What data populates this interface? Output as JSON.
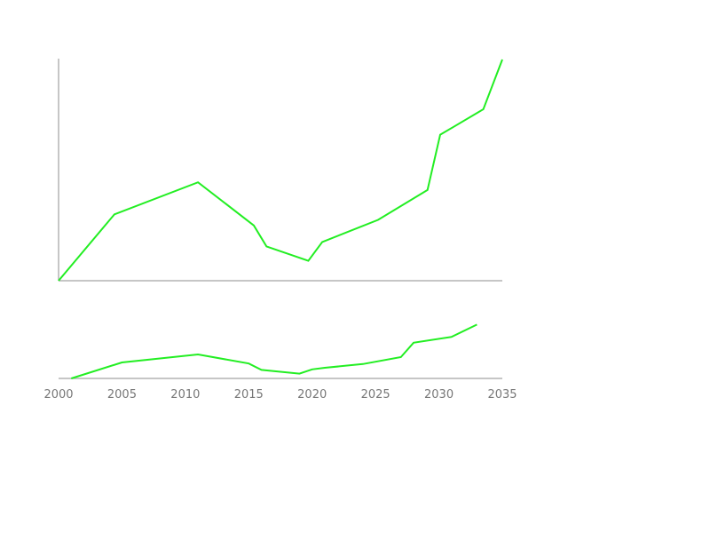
{
  "chart_data": [
    {
      "type": "line",
      "title": "",
      "xlabel": "",
      "ylabel": "",
      "xlim": [
        2000,
        2035
      ],
      "ylim": [
        0,
        100
      ],
      "grid": false,
      "legend": "none",
      "x_ticks_visible": false,
      "y_ticks_visible": false,
      "series": [
        {
          "color": "#22ee22",
          "x": [
            2000,
            2004.4,
            2011,
            2015.4,
            2016.4,
            2019.7,
            2020.8,
            2025.2,
            2029.1,
            2030.1,
            2033.5,
            2035
          ],
          "y": [
            0,
            30,
            44.5,
            25,
            15.5,
            9,
            17.5,
            27.5,
            41,
            66,
            77.5,
            100
          ]
        }
      ]
    },
    {
      "type": "line",
      "title": "",
      "xlabel": "",
      "ylabel": "",
      "xlim": [
        2000,
        2035
      ],
      "ylim": [
        0,
        100
      ],
      "grid": false,
      "legend": "none",
      "x_ticks": [
        "2000",
        "2005",
        "2010",
        "2015",
        "2020",
        "2025",
        "2030",
        "2035"
      ],
      "series": [
        {
          "color": "#22ee22",
          "x": [
            2001,
            2005,
            2011,
            2015,
            2016,
            2019,
            2020,
            2021,
            2024,
            2027,
            2028,
            2031,
            2033
          ],
          "y": [
            0,
            30,
            45,
            28,
            16,
            9,
            17,
            20,
            27,
            40,
            67,
            78,
            101
          ]
        }
      ]
    }
  ]
}
